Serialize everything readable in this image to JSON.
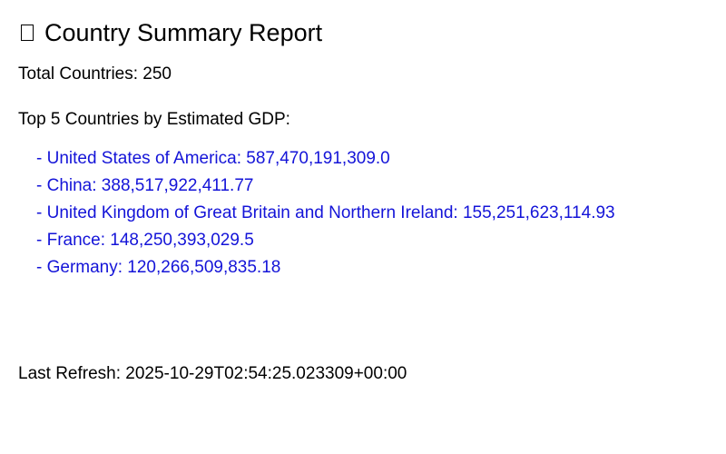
{
  "report": {
    "title": "Country Summary Report",
    "title_icon": "globe-icon",
    "total_countries_label": "Total Countries: 250",
    "top_heading": "Top 5 Countries by Estimated GDP:",
    "top_countries": [
      {
        "text": "- United States of America: 587,470,191,309.0"
      },
      {
        "text": "- China: 388,517,922,411.77"
      },
      {
        "text": "- United Kingdom of Great Britain and Northern Ireland: 155,251,623,114.93"
      },
      {
        "text": "- France: 148,250,393,029.5"
      },
      {
        "text": "- Germany: 120,266,509,835.18"
      }
    ],
    "last_refresh": "Last Refresh: 2025-10-29T02:54:25.023309+00:00"
  },
  "colors": {
    "text": "#000000",
    "list_text": "#1414d8",
    "background": "#ffffff"
  }
}
